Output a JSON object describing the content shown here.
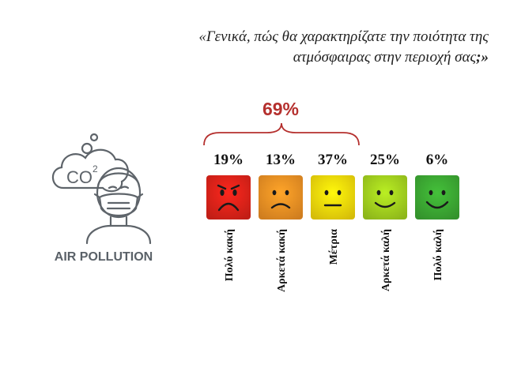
{
  "question": {
    "line1": "«Γενικά, πώς θα χαρακτηρίζατε την ποιότητα της",
    "line2": "ατμόσφαιρας στην περιοχή σας",
    "line2_punct": ";»"
  },
  "illustration": {
    "label": "AIR POLLUTION",
    "bubble_text": "CO",
    "bubble_sup": "2"
  },
  "chart_data": {
    "type": "bar",
    "title": "«Γενικά, πώς θα χαρακτηρίζατε την ποιότητα της ατμόσφαιρας στην περιοχή σας;»",
    "categories": [
      "Πολύ κακή",
      "Αρκετά κακή",
      "Μέτρια",
      "Αρκετά καλή",
      "Πολύ καλή"
    ],
    "values": [
      19,
      13,
      37,
      25,
      6
    ],
    "value_labels": [
      "19%",
      "13%",
      "37%",
      "25%",
      "6%"
    ],
    "unit": "%",
    "faces": [
      "very-sad",
      "sad",
      "neutral",
      "happy",
      "very-happy"
    ],
    "colors": [
      "#e2231a",
      "#f39325",
      "#fbdd0a",
      "#a6d51f",
      "#3dac34"
    ],
    "aggregate": {
      "label": "69%",
      "value": 69,
      "covers": [
        "Πολύ κακή",
        "Αρκετά κακή",
        "Μέτρια"
      ]
    }
  }
}
